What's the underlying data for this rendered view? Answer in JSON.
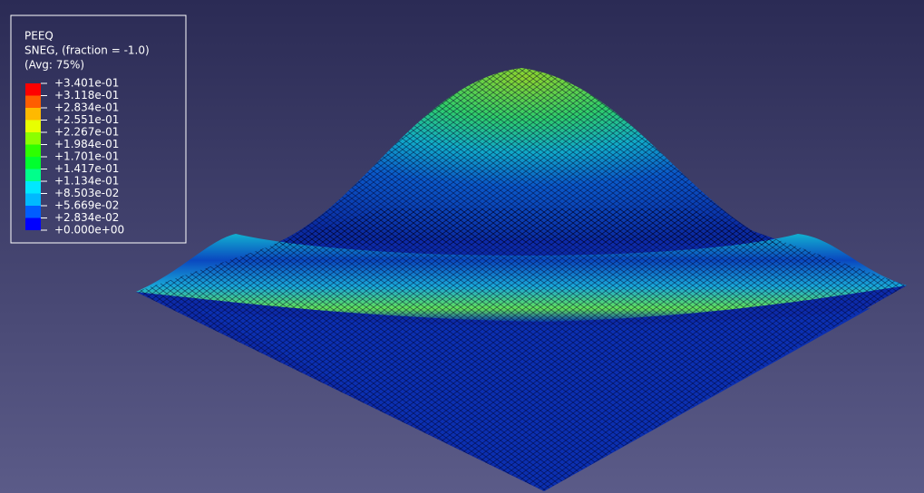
{
  "legend": {
    "title": [
      "PEEQ",
      "SNEG, (fraction = -1.0)",
      "(Avg: 75%)"
    ],
    "levels": [
      "+3.401e-01",
      "+3.118e-01",
      "+2.834e-01",
      "+2.551e-01",
      "+2.267e-01",
      "+1.984e-01",
      "+1.701e-01",
      "+1.417e-01",
      "+1.134e-01",
      "+8.503e-02",
      "+5.669e-02",
      "+2.834e-02",
      "+0.000e+00"
    ],
    "colors": [
      "#ff0000",
      "#ff5d00",
      "#ffb900",
      "#e8ff00",
      "#8bff00",
      "#2eff00",
      "#00ff2e",
      "#00ff8b",
      "#00e8ff",
      "#00b9ff",
      "#005dff",
      "#0000ff"
    ]
  }
}
